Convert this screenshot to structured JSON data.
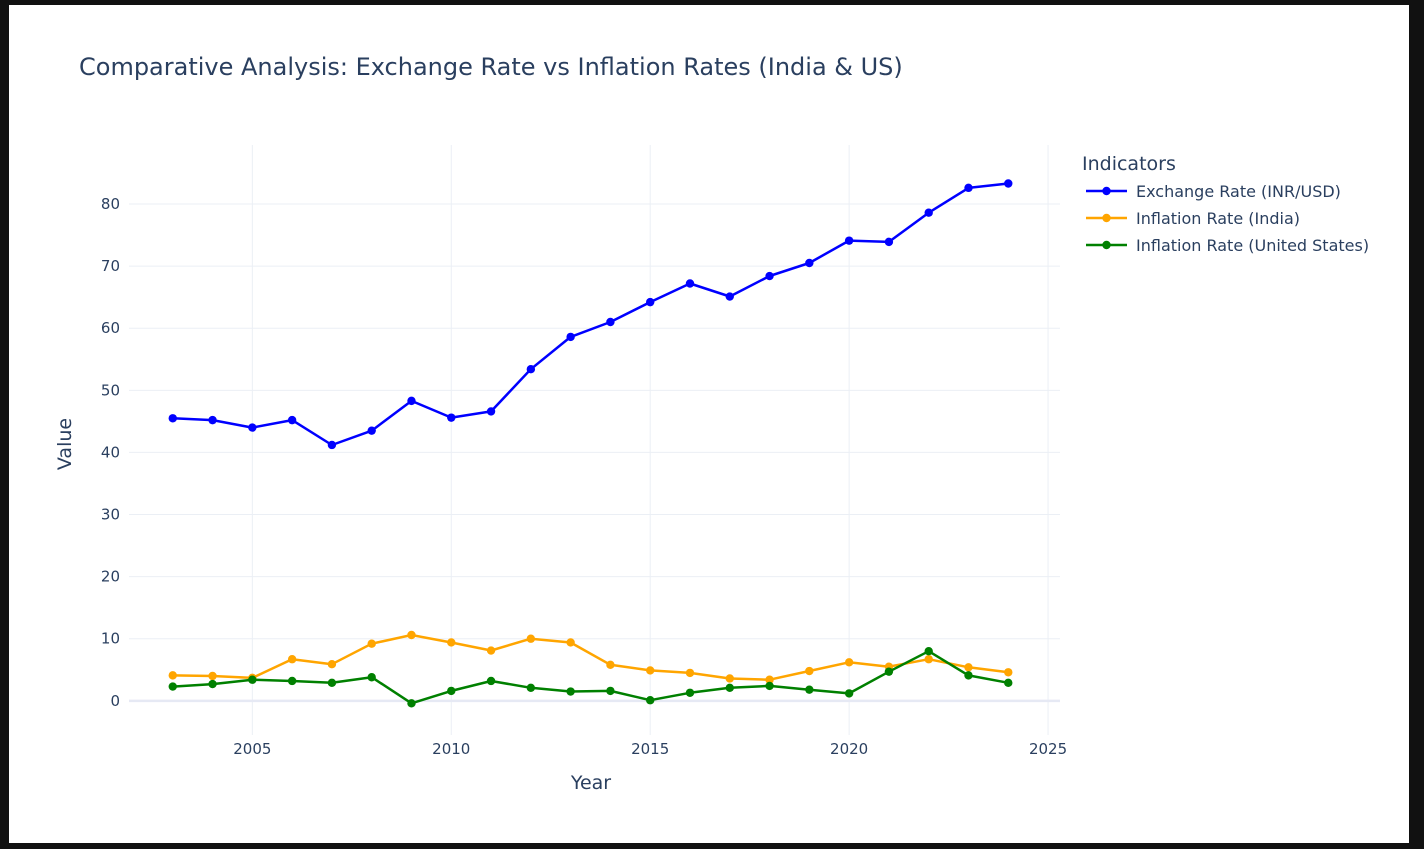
{
  "chart_data": {
    "type": "line",
    "title": "Comparative Analysis: Exchange Rate vs Inflation Rates (India & US)",
    "xlabel": "Year",
    "ylabel": "Value",
    "xlim": [
      2001.9,
      2025.3
    ],
    "ylim": [
      -5.5,
      89.5
    ],
    "x_ticks": [
      2005,
      2010,
      2015,
      2020,
      2025
    ],
    "y_ticks": [
      0,
      10,
      20,
      30,
      40,
      50,
      60,
      70,
      80
    ],
    "grid": true,
    "legend": {
      "title": "Indicators",
      "placement": "right"
    },
    "x": [
      2003,
      2004,
      2005,
      2006,
      2007,
      2008,
      2009,
      2010,
      2011,
      2012,
      2013,
      2014,
      2015,
      2016,
      2017,
      2018,
      2019,
      2020,
      2021,
      2022,
      2023,
      2024
    ],
    "series": [
      {
        "name": "Exchange Rate (INR/USD)",
        "color": "#0000ff",
        "values": [
          45.5,
          45.2,
          44.0,
          45.2,
          41.2,
          43.5,
          48.3,
          45.6,
          46.6,
          53.4,
          58.6,
          61.0,
          64.2,
          67.2,
          65.1,
          68.4,
          70.5,
          74.1,
          73.9,
          78.6,
          82.6,
          83.3
        ]
      },
      {
        "name": "Inflation Rate (India)",
        "color": "#ffa500",
        "values": [
          4.1,
          4.0,
          3.7,
          6.7,
          5.9,
          9.2,
          10.6,
          9.4,
          8.1,
          10.0,
          9.4,
          5.8,
          4.9,
          4.5,
          3.6,
          3.4,
          4.8,
          6.2,
          5.5,
          6.7,
          5.4,
          4.6
        ]
      },
      {
        "name": "Inflation Rate (United States)",
        "color": "#008000",
        "values": [
          2.3,
          2.7,
          3.4,
          3.2,
          2.9,
          3.8,
          -0.4,
          1.6,
          3.2,
          2.1,
          1.5,
          1.6,
          0.1,
          1.3,
          2.1,
          2.4,
          1.8,
          1.2,
          4.7,
          8.0,
          4.1,
          2.9
        ]
      }
    ]
  }
}
